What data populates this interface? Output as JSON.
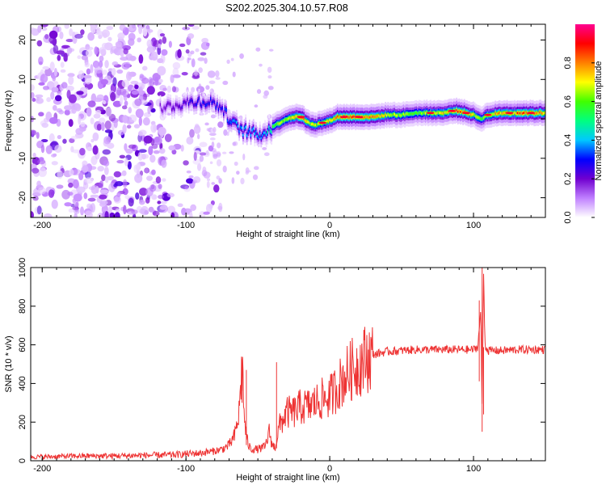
{
  "title": "S202.2025.304.10.57.R08",
  "chart_data": [
    {
      "type": "heatmap",
      "title": "S202.2025.304.10.57.R08",
      "xlabel": "Height of straight line (km)",
      "ylabel": "Frequency (Hz)",
      "xlim": [
        -208,
        150
      ],
      "ylim": [
        -25,
        24
      ],
      "xticks": [
        -200,
        -100,
        0,
        100
      ],
      "xtick_labels": [
        "-200",
        "-100",
        "0",
        "100"
      ],
      "yticks": [
        -20,
        -10,
        0,
        10,
        20
      ],
      "ytick_labels": [
        "-20",
        "-10",
        "0",
        "10",
        "20"
      ],
      "colorbar": {
        "label": "Normalized spectral amplitude",
        "range": [
          0,
          1
        ],
        "ticks": [
          0.0,
          0.2,
          0.4,
          0.6,
          0.8
        ],
        "tick_labels": [
          "0.0",
          "0.2",
          "0.4",
          "0.6",
          "0.8"
        ],
        "colors": [
          "#ffffff",
          "#c080ff",
          "#7000d0",
          "#0000ff",
          "#00c8ff",
          "#00ff80",
          "#40ff00",
          "#ffff00",
          "#ff8000",
          "#ff0000",
          "#ff0090"
        ]
      },
      "ridge": {
        "x": [
          -115,
          -100,
          -90,
          -80,
          -75,
          -70,
          -65,
          -60,
          -55,
          -50,
          -45,
          -40,
          -35,
          -30,
          -25,
          -20,
          -15,
          -10,
          -5,
          0,
          5,
          10,
          20,
          30,
          40,
          50,
          60,
          70,
          80,
          85,
          90,
          95,
          100,
          105,
          110,
          120,
          130,
          140,
          150
        ],
        "freq": [
          3,
          4,
          4.5,
          4,
          2.5,
          0,
          -2,
          -3,
          -3.5,
          -4,
          -3.5,
          -2,
          -1,
          0,
          0.5,
          0.5,
          -1,
          -1.5,
          -1,
          -0.5,
          0.5,
          0.5,
          0.5,
          0.5,
          1,
          1,
          1.5,
          1.5,
          1.5,
          2,
          2,
          1.5,
          1,
          0,
          1,
          1.5,
          1.5,
          1.5,
          1.5
        ],
        "amp": [
          0.2,
          0.25,
          0.3,
          0.3,
          0.3,
          0.35,
          0.4,
          0.4,
          0.4,
          0.4,
          0.45,
          0.55,
          0.65,
          0.7,
          0.8,
          0.9,
          0.75,
          0.7,
          0.7,
          0.75,
          0.85,
          0.9,
          0.9,
          0.8,
          0.7,
          0.65,
          0.65,
          0.7,
          0.75,
          0.8,
          0.85,
          0.8,
          0.7,
          0.6,
          0.75,
          0.8,
          0.85,
          0.85,
          0.8
        ]
      },
      "noise_region_x": [
        -208,
        -75
      ]
    },
    {
      "type": "line",
      "xlabel": "Height of straight line (km)",
      "ylabel": "SNR (10 * v/v)",
      "xlim": [
        -208,
        150
      ],
      "ylim": [
        0,
        1000
      ],
      "xticks": [
        -200,
        -100,
        0,
        100
      ],
      "xtick_labels": [
        "-200",
        "-100",
        "0",
        "100"
      ],
      "yticks": [
        0,
        200,
        400,
        600,
        800,
        1000
      ],
      "ytick_labels": [
        "0",
        "200",
        "400",
        "600",
        "800",
        "1000"
      ],
      "color": "#ee3333",
      "series": [
        {
          "name": "SNR",
          "x": [
            -208,
            -190,
            -170,
            -150,
            -130,
            -110,
            -100,
            -90,
            -80,
            -75,
            -70,
            -66,
            -63,
            -61,
            -59,
            -57,
            -55,
            -50,
            -45,
            -42,
            -40,
            -38,
            -35,
            -30,
            -25,
            -20,
            -15,
            -10,
            -5,
            0,
            5,
            10,
            15,
            20,
            25,
            30,
            40,
            50,
            60,
            70,
            80,
            90,
            100,
            103,
            105,
            106,
            107,
            108,
            110,
            115,
            120,
            130,
            140,
            150
          ],
          "values": [
            20,
            22,
            25,
            25,
            28,
            30,
            35,
            40,
            50,
            60,
            80,
            130,
            250,
            500,
            180,
            90,
            60,
            60,
            70,
            150,
            80,
            70,
            180,
            250,
            250,
            280,
            280,
            300,
            320,
            330,
            380,
            430,
            470,
            500,
            530,
            550,
            565,
            570,
            575,
            575,
            575,
            575,
            575,
            590,
            780,
            250,
            980,
            600,
            570,
            570,
            570,
            575,
            575,
            575
          ]
        }
      ]
    }
  ]
}
